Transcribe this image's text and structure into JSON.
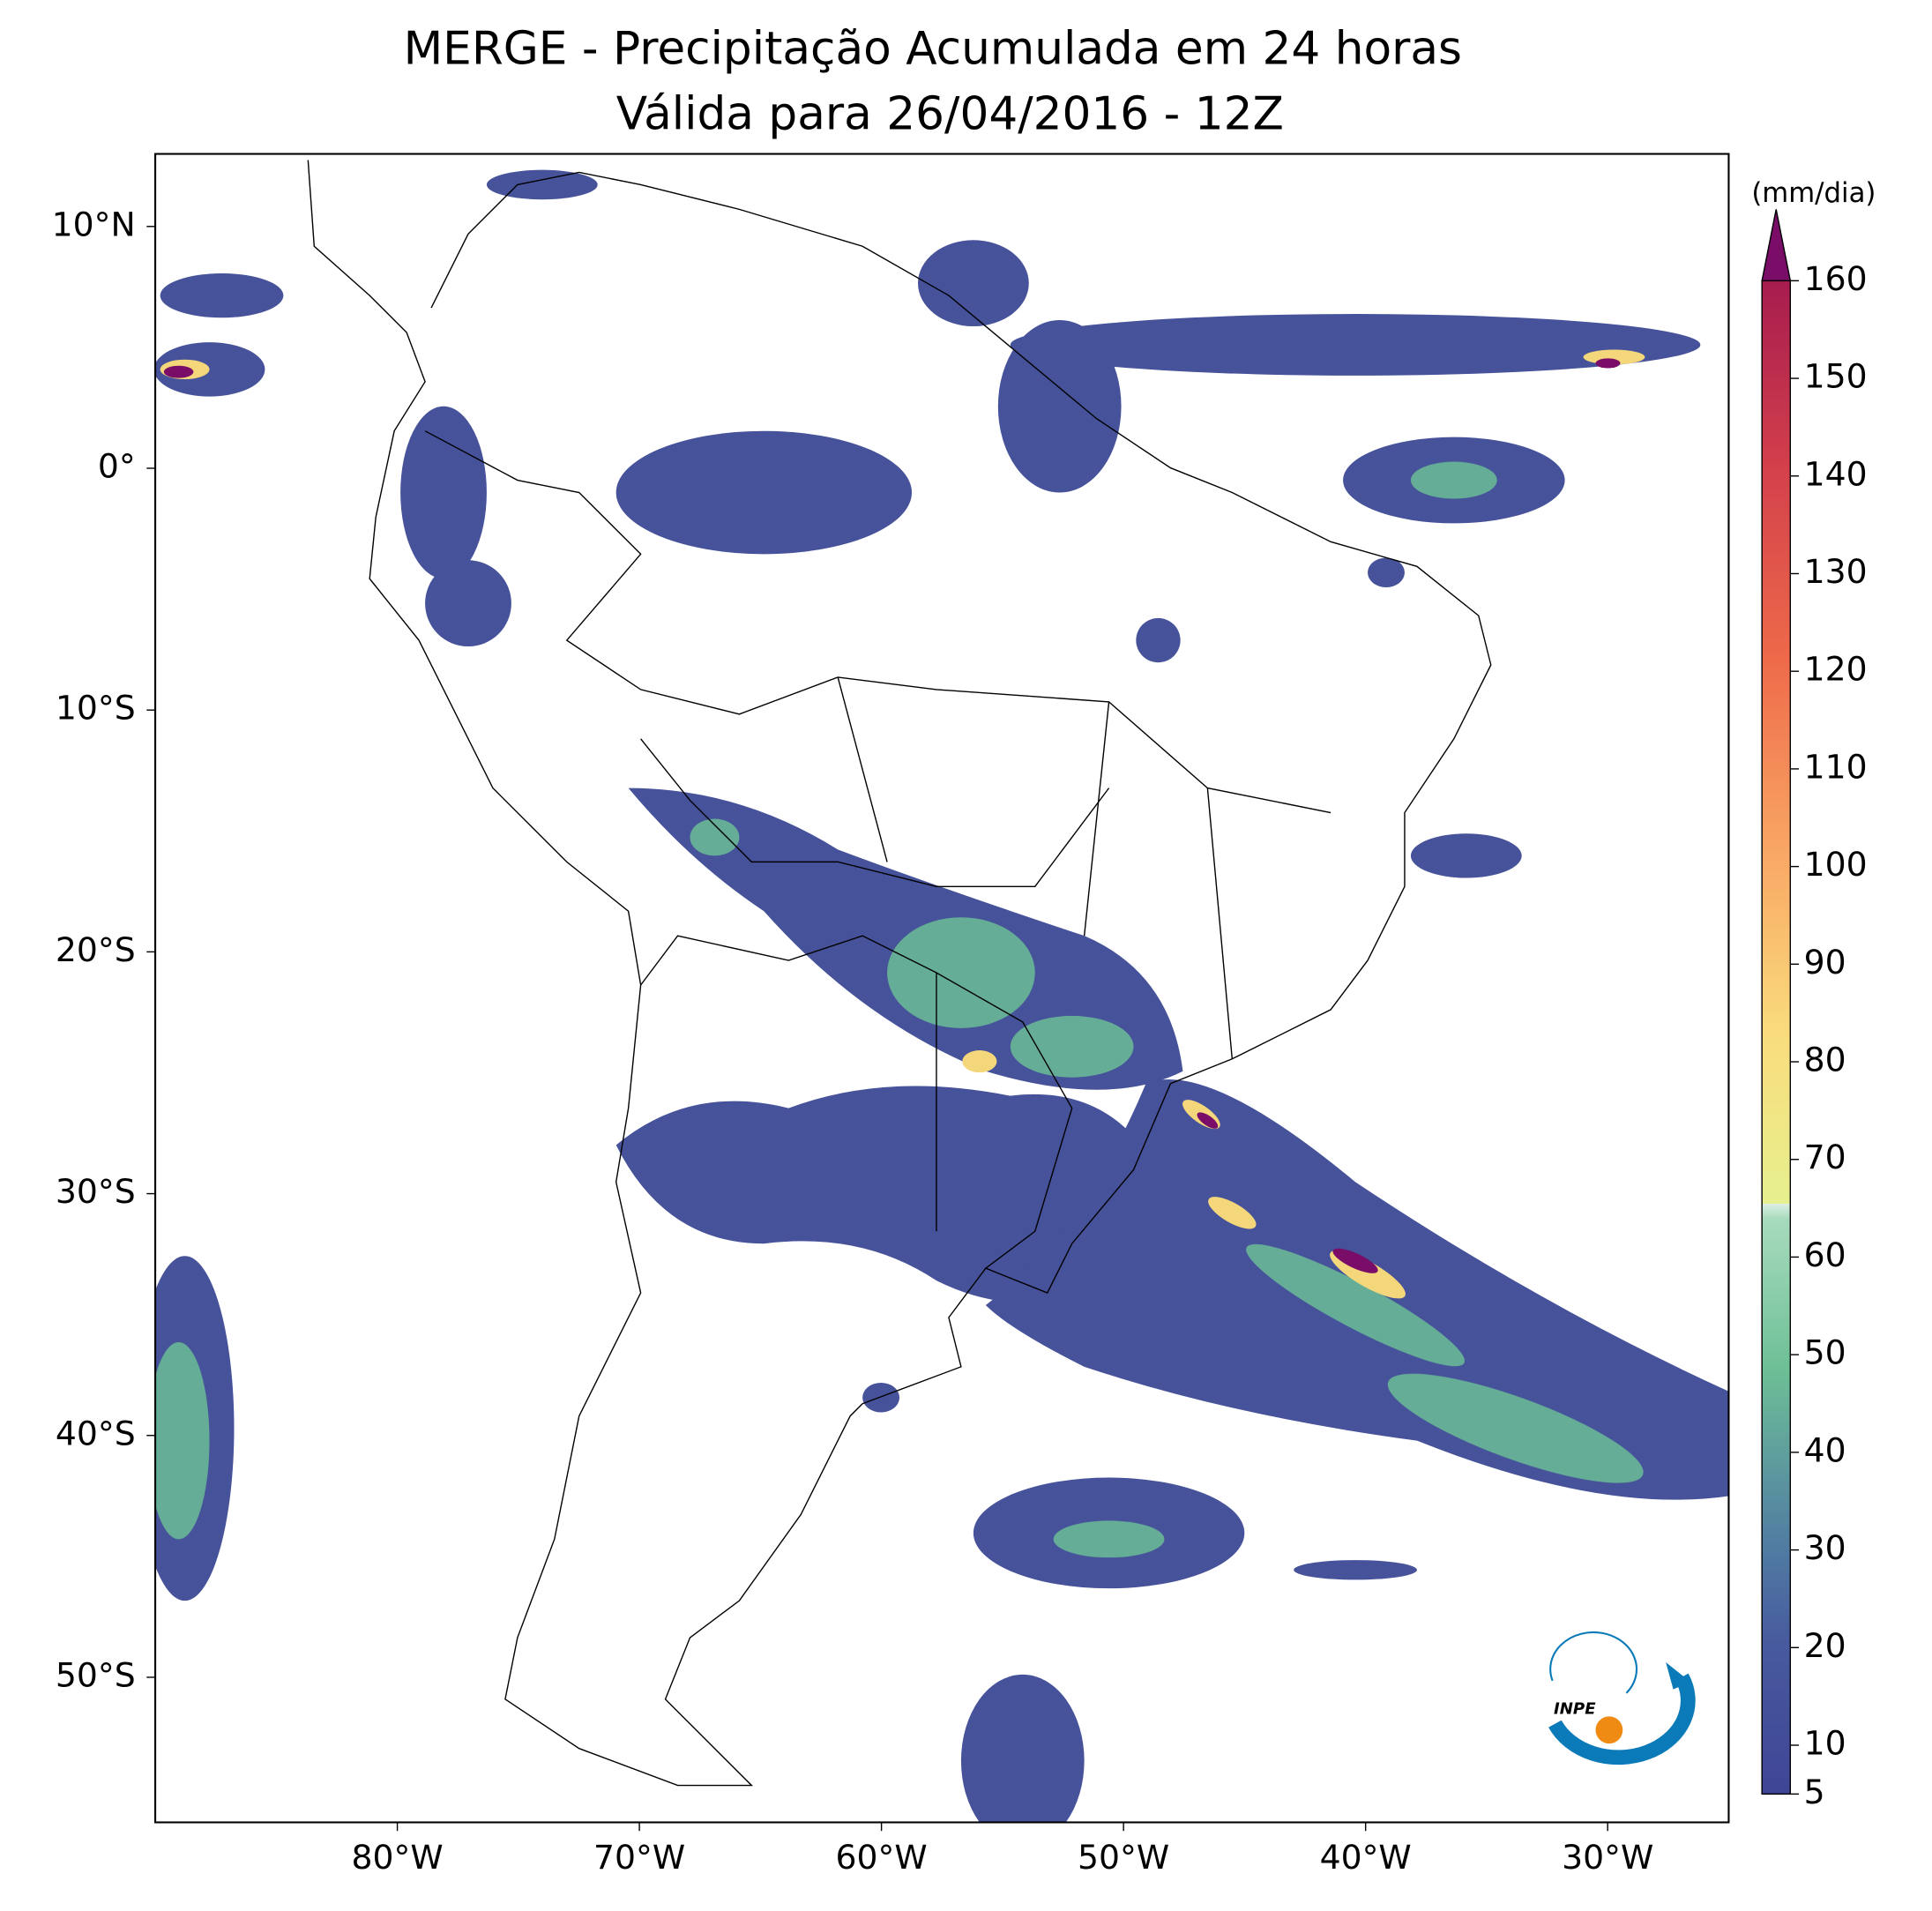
{
  "title": [
    "MERGE - Precipitação Acumulada em 24 horas",
    "Válida para 26/04/2016 - 12Z"
  ],
  "map": {
    "xlim": [
      -90,
      -25
    ],
    "ylim": [
      -56,
      13
    ],
    "xticks": [
      {
        "value": -80,
        "label": "80°W"
      },
      {
        "value": -70,
        "label": "70°W"
      },
      {
        "value": -60,
        "label": "60°W"
      },
      {
        "value": -50,
        "label": "50°W"
      },
      {
        "value": -40,
        "label": "40°W"
      },
      {
        "value": -30,
        "label": "30°W"
      }
    ],
    "yticks": [
      {
        "value": 10,
        "label": "10°N"
      },
      {
        "value": 0,
        "label": "0°"
      },
      {
        "value": -10,
        "label": "10°S"
      },
      {
        "value": -20,
        "label": "20°S"
      },
      {
        "value": -30,
        "label": "30°S"
      },
      {
        "value": -40,
        "label": "40°S"
      },
      {
        "value": -50,
        "label": "50°S"
      }
    ]
  },
  "colorbar": {
    "unit": "(mm/dia)",
    "ylim": [
      5,
      160
    ],
    "ticks": [
      5,
      10,
      20,
      30,
      40,
      50,
      60,
      70,
      80,
      90,
      100,
      110,
      120,
      130,
      140,
      150,
      160
    ]
  },
  "logo": "INPE"
}
